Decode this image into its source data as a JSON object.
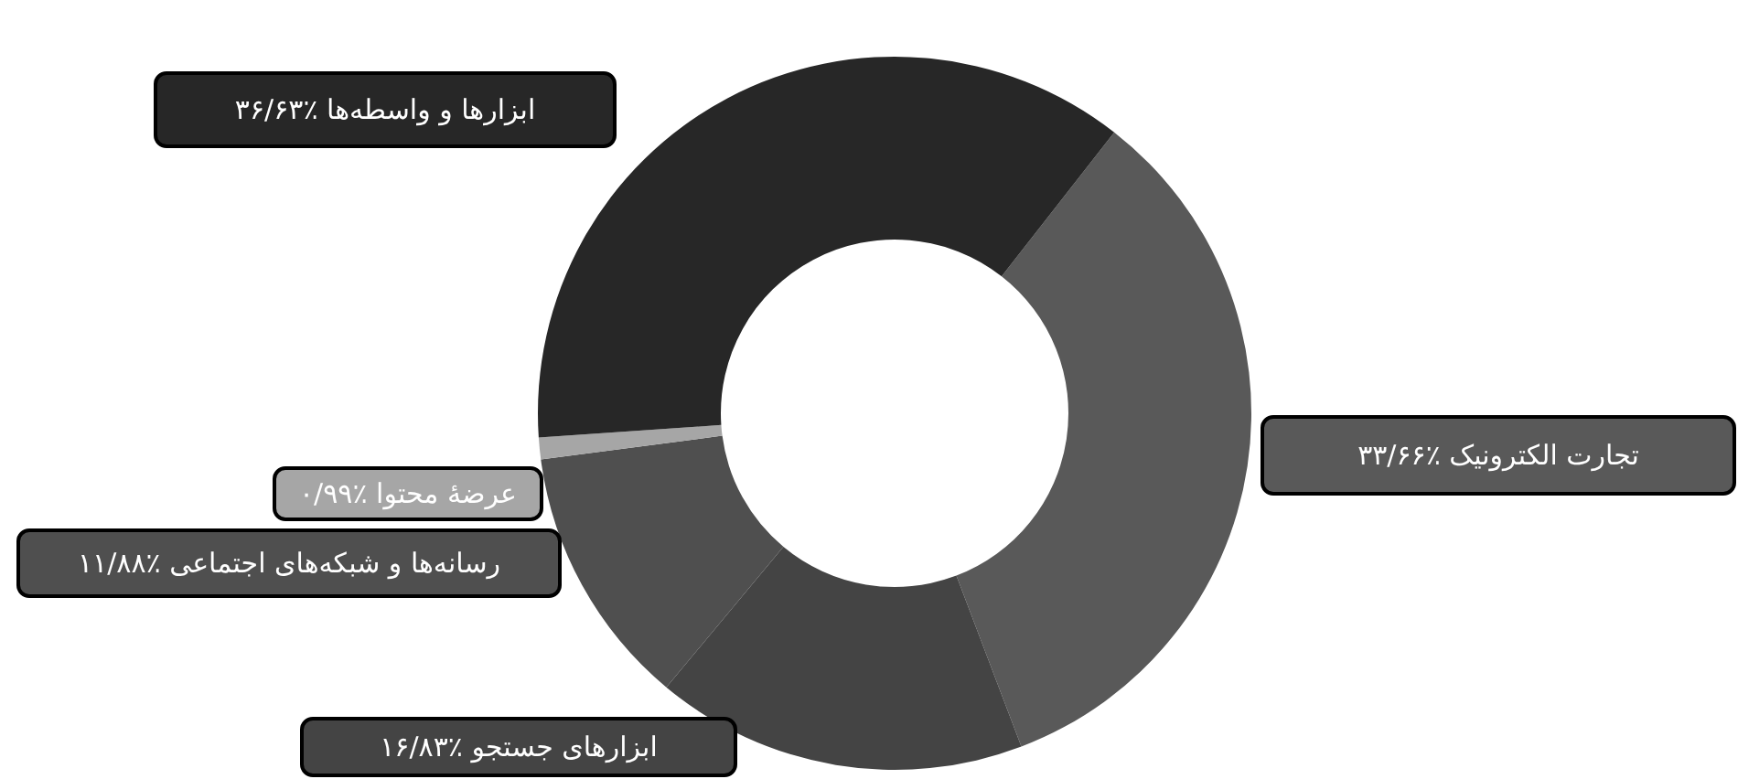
{
  "chart_data": {
    "type": "donut",
    "categories": [
      "تجارت الکترونیک",
      "ابزارهای جستجو",
      "رسانه‌ها و شبکه‌های اجتماعی",
      "عرضهٔ محتوا",
      "ابزارها و واسطه‌ها"
    ],
    "values": [
      33.66,
      16.83,
      11.88,
      0.99,
      36.63
    ],
    "colors": [
      "#595959",
      "#444444",
      "#4f4f4f",
      "#a6a6a6",
      "#272727"
    ],
    "value_labels": [
      "٪۳۳/۶۶",
      "٪۱۶/۸۳",
      "٪۱۱/۸۸",
      "٪۰/۹۹",
      "٪۳۶/۶۳"
    ]
  }
}
